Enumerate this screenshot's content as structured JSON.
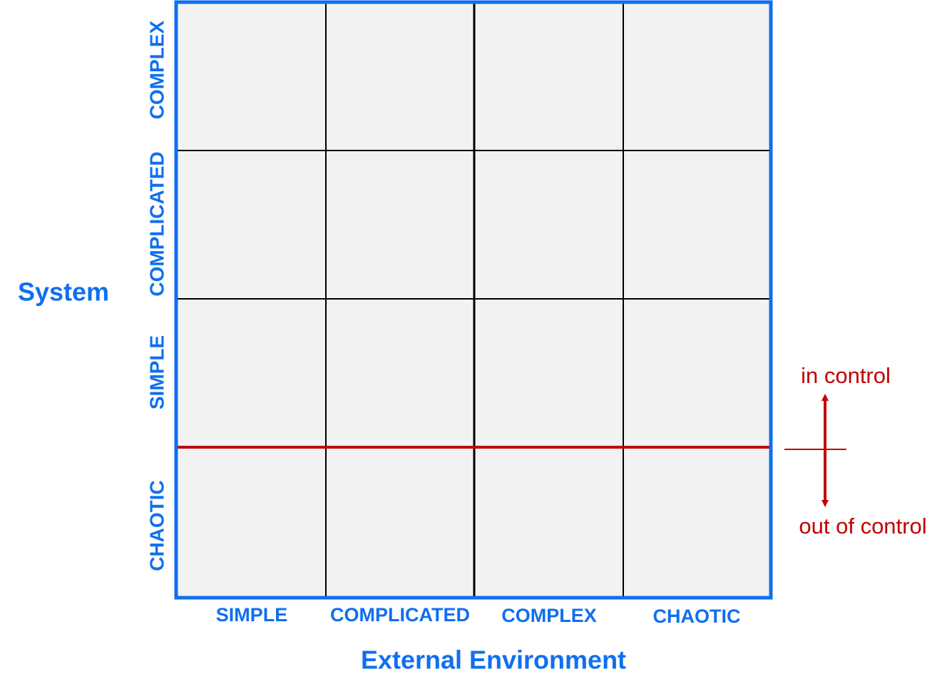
{
  "system_axis": {
    "label": "System",
    "levels": [
      "COMPLEX",
      "COMPLICATED",
      "SIMPLE",
      "CHAOTIC"
    ]
  },
  "environment_axis": {
    "label": "External Environment",
    "levels": [
      "SIMPLE",
      "COMPLICATED",
      "COMPLEX",
      "CHAOTIC"
    ]
  },
  "threshold": {
    "above": "in control",
    "below": "out of control"
  }
}
